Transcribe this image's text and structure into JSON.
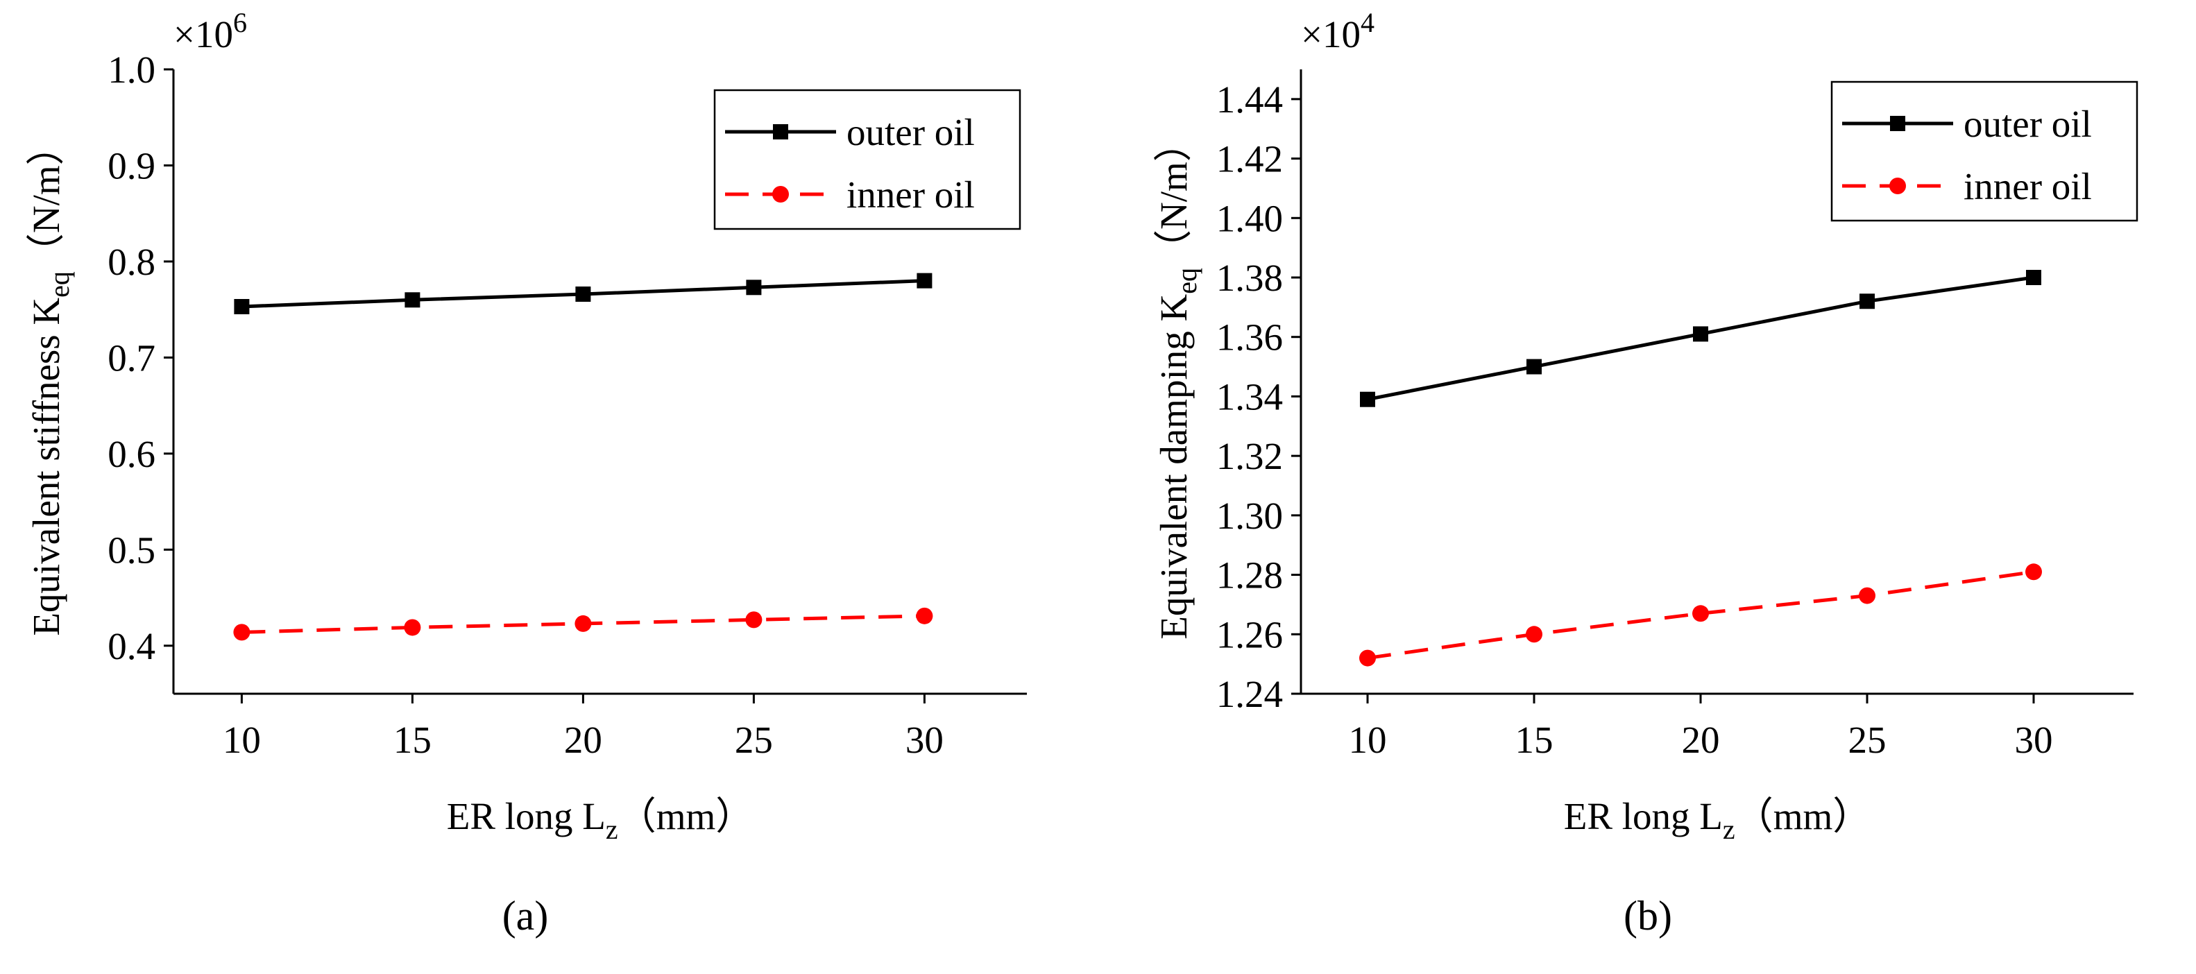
{
  "chart_data": [
    {
      "type": "line",
      "panel_label": "(a)",
      "exponent_label": "×10",
      "exponent_power": "6",
      "ylabel": "Equivalent stiffness K",
      "ylabel_sub": "eq",
      "ylabel_unit": "（N/m）",
      "xlabel": "ER long L",
      "xlabel_sub": "z",
      "xlabel_unit": "（mm）",
      "x": [
        10,
        15,
        20,
        25,
        30
      ],
      "xticks": [
        10,
        15,
        20,
        25,
        30
      ],
      "xtick_labels": [
        "10",
        "15",
        "20",
        "25",
        "30"
      ],
      "xlim": [
        8,
        33
      ],
      "ylim": [
        0.35,
        1.0
      ],
      "yticks": [
        0.4,
        0.5,
        0.6,
        0.7,
        0.8,
        0.9,
        1.0
      ],
      "ytick_labels": [
        "0.4",
        "0.5",
        "0.6",
        "0.7",
        "0.8",
        "0.9",
        "1.0"
      ],
      "legend_position": "top-right",
      "series": [
        {
          "name": "outer oil",
          "color": "#000000",
          "dash": "solid",
          "marker": "square",
          "values": [
            0.753,
            0.76,
            0.766,
            0.773,
            0.78
          ]
        },
        {
          "name": "inner oil",
          "color": "#ff0000",
          "dash": "dashed",
          "marker": "circle",
          "values": [
            0.414,
            0.419,
            0.423,
            0.427,
            0.431
          ]
        }
      ]
    },
    {
      "type": "line",
      "panel_label": "(b)",
      "exponent_label": "×10",
      "exponent_power": "4",
      "ylabel": "Equivalent damping K",
      "ylabel_sub": "eq",
      "ylabel_unit": "（N/m）",
      "xlabel": "ER long L",
      "xlabel_sub": "z",
      "xlabel_unit": "（mm）",
      "x": [
        10,
        15,
        20,
        25,
        30
      ],
      "xticks": [
        10,
        15,
        20,
        25,
        30
      ],
      "xtick_labels": [
        "10",
        "15",
        "20",
        "25",
        "30"
      ],
      "xlim": [
        8,
        33
      ],
      "ylim": [
        1.24,
        1.45
      ],
      "yticks": [
        1.24,
        1.26,
        1.28,
        1.3,
        1.32,
        1.34,
        1.36,
        1.38,
        1.4,
        1.42,
        1.44
      ],
      "ytick_labels": [
        "1.24",
        "1.26",
        "1.28",
        "1.30",
        "1.32",
        "1.34",
        "1.36",
        "1.38",
        "1.40",
        "1.42",
        "1.44"
      ],
      "legend_position": "top-right",
      "series": [
        {
          "name": "outer oil",
          "color": "#000000",
          "dash": "solid",
          "marker": "square",
          "values": [
            1.339,
            1.35,
            1.361,
            1.372,
            1.38
          ]
        },
        {
          "name": "inner oil",
          "color": "#ff0000",
          "dash": "dashed",
          "marker": "circle",
          "values": [
            1.252,
            1.26,
            1.267,
            1.273,
            1.281
          ]
        }
      ]
    }
  ]
}
